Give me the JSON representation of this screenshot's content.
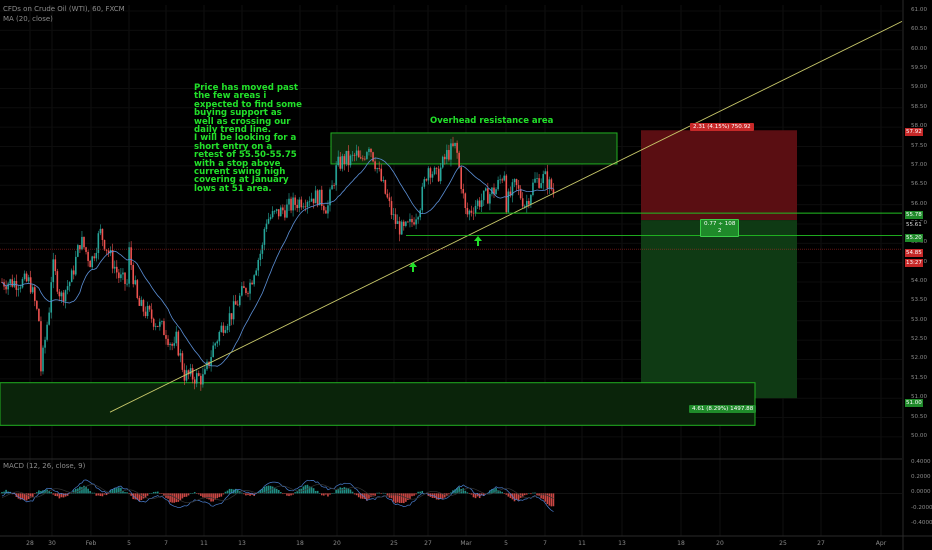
{
  "header": {
    "symbol_line": "CFDs on Crude Oil (WTI), 60, FXCM",
    "ma_line": "MA (20, close)",
    "macd_line": "MACD (12, 26, close, 9)"
  },
  "annotations": {
    "note": "Price has moved past the few areas i expected to find some buying support as well as crossing our daily trend line.\nI will be looking for a short entry on a retest of 55.50-55.75 with a stop above current swing high covering at January lows at 51 area.",
    "resistance_label": "Overhead resistance area",
    "stop_info": "2.31 (4.15%) 750.92",
    "mid_info_line1": "0.77 ÷ 108",
    "mid_info_line2": "2",
    "target_info": "4.61 (8.29%) 1497.88"
  },
  "price_tags": {
    "stop": "57.92",
    "upper_line": "55.78",
    "entry": "55.61",
    "lower_line": "55.20",
    "current": "54.85",
    "time_left": "13:27",
    "target": "51.00"
  },
  "colors": {
    "background": "#000000",
    "up_candle": "#26a69a",
    "down_candle": "#ef5350",
    "ma_line": "#5b8fd6",
    "trendline": "#c8c86a",
    "support_zone": "#22c022",
    "stop_zone": "#5a0e12",
    "target_zone": "#0f3a14",
    "annotation_text": "#22e02a"
  },
  "chart_data": [
    {
      "type": "candlestick",
      "title": "CFDs on Crude Oil (WTI), 60, FXCM",
      "x_ticks": [
        "28",
        "30",
        "Feb",
        "5",
        "7",
        "11",
        "13",
        "18",
        "20",
        "25",
        "27",
        "Mar",
        "5",
        "7",
        "11",
        "13",
        "18",
        "20",
        "25",
        "27",
        "Apr"
      ],
      "y_ticks": [
        "61.00",
        "60.50",
        "60.00",
        "59.50",
        "59.00",
        "58.50",
        "58.00",
        "57.50",
        "57.00",
        "56.50",
        "56.00",
        "55.50",
        "55.00",
        "54.50",
        "54.00",
        "53.50",
        "53.00",
        "52.50",
        "52.00",
        "51.50",
        "51.00",
        "50.50",
        "50.00"
      ],
      "ylim": [
        49.7,
        61.1
      ],
      "x_date_range": [
        "Jan 28",
        "Mar 8"
      ],
      "price_path": [
        {
          "x": "Jan 28",
          "y": 54.0
        },
        {
          "x": "Jan 28",
          "y": 53.0
        },
        {
          "x": "Jan 29",
          "y": 51.7
        },
        {
          "x": "Jan 29",
          "y": 53.5
        },
        {
          "x": "Jan 30",
          "y": 54.5
        },
        {
          "x": "Jan 30",
          "y": 53.6
        },
        {
          "x": "Jan 31",
          "y": 54.1
        },
        {
          "x": "Jan 31",
          "y": 55.1
        },
        {
          "x": "Feb 1",
          "y": 54.5
        },
        {
          "x": "Feb 1",
          "y": 55.3
        },
        {
          "x": "Feb 4",
          "y": 54.1
        },
        {
          "x": "Feb 4",
          "y": 53.9
        },
        {
          "x": "Feb 5",
          "y": 54.8
        },
        {
          "x": "Feb 5",
          "y": 53.4
        },
        {
          "x": "Feb 6",
          "y": 53.2
        },
        {
          "x": "Feb 7",
          "y": 52.7
        },
        {
          "x": "Feb 7",
          "y": 52.2
        },
        {
          "x": "Feb 8",
          "y": 52.6
        },
        {
          "x": "Feb 8",
          "y": 51.6
        },
        {
          "x": "Feb 11",
          "y": 51.5
        },
        {
          "x": "Feb 11",
          "y": 52.3
        },
        {
          "x": "Feb 12",
          "y": 52.9
        },
        {
          "x": "Feb 12",
          "y": 53.2
        },
        {
          "x": "Feb 13",
          "y": 53.7
        },
        {
          "x": "Feb 13",
          "y": 54.0
        },
        {
          "x": "Feb 14",
          "y": 54.3
        },
        {
          "x": "Feb 14",
          "y": 54.9
        },
        {
          "x": "Feb 15",
          "y": 55.6
        },
        {
          "x": "Feb 18",
          "y": 56.1
        },
        {
          "x": "Feb 18",
          "y": 56.2
        },
        {
          "x": "Feb 19",
          "y": 56.2
        },
        {
          "x": "Feb 19",
          "y": 55.9
        },
        {
          "x": "Feb 20",
          "y": 57.0
        },
        {
          "x": "Feb 20",
          "y": 57.2
        },
        {
          "x": "Feb 21",
          "y": 57.1
        },
        {
          "x": "Feb 21",
          "y": 57.3
        },
        {
          "x": "Feb 22",
          "y": 57.0
        },
        {
          "x": "Feb 22",
          "y": 57.6
        },
        {
          "x": "Feb 25",
          "y": 55.6
        },
        {
          "x": "Feb 25",
          "y": 55.3
        },
        {
          "x": "Feb 26",
          "y": 55.5
        },
        {
          "x": "Feb 26",
          "y": 56.0
        },
        {
          "x": "Feb 27",
          "y": 57.0
        },
        {
          "x": "Feb 27",
          "y": 56.7
        },
        {
          "x": "Feb 28",
          "y": 57.3
        },
        {
          "x": "Feb 28",
          "y": 57.5
        },
        {
          "x": "Mar 1",
          "y": 55.7
        },
        {
          "x": "Mar 1",
          "y": 56.0
        },
        {
          "x": "Mar 4",
          "y": 56.4
        },
        {
          "x": "Mar 4",
          "y": 56.9
        },
        {
          "x": "Mar 5",
          "y": 56.0
        },
        {
          "x": "Mar 5",
          "y": 56.5
        },
        {
          "x": "Mar 6",
          "y": 56.0
        },
        {
          "x": "Mar 6",
          "y": 56.6
        },
        {
          "x": "Mar 7",
          "y": 56.7
        },
        {
          "x": "Mar 7",
          "y": 56.3
        },
        {
          "x": "Mar 8",
          "y": 55.6
        },
        {
          "x": "Mar 8",
          "y": 54.85
        }
      ],
      "overlays": {
        "resistance_zone": [
          57.05,
          57.85
        ],
        "support_zone": [
          50.3,
          51.4
        ],
        "entry_line": 55.78,
        "lower_line": 55.2,
        "stop_level": 57.92,
        "target_level": 51.0,
        "trendline": [
          {
            "x": "Jan 30",
            "y": 49.9
          },
          {
            "x": "Mar 8",
            "y": 56.3
          }
        ]
      }
    },
    {
      "type": "line",
      "title": "MACD (12, 26, close, 9)",
      "y_ticks": [
        "0.4000",
        "0.2000",
        "0.0000",
        "-0.2000",
        "-0.4000"
      ],
      "ylim": [
        -0.46,
        0.42
      ],
      "series": [
        {
          "name": "MACD",
          "x": [
            "Jan 28",
            "Feb 1",
            "Feb 7",
            "Feb 11",
            "Feb 15",
            "Feb 20",
            "Feb 25",
            "Mar 1",
            "Mar 5",
            "Mar 8"
          ],
          "values": [
            -0.05,
            0.12,
            -0.12,
            -0.15,
            0.1,
            0.12,
            -0.14,
            0.05,
            0.02,
            -0.18
          ]
        },
        {
          "name": "Signal",
          "x": [
            "Jan 28",
            "Feb 1",
            "Feb 7",
            "Feb 11",
            "Feb 15",
            "Feb 20",
            "Feb 25",
            "Mar 1",
            "Mar 5",
            "Mar 8"
          ],
          "values": [
            -0.02,
            0.08,
            -0.06,
            -0.1,
            0.05,
            0.09,
            -0.06,
            0.03,
            0.03,
            -0.08
          ]
        }
      ]
    }
  ]
}
